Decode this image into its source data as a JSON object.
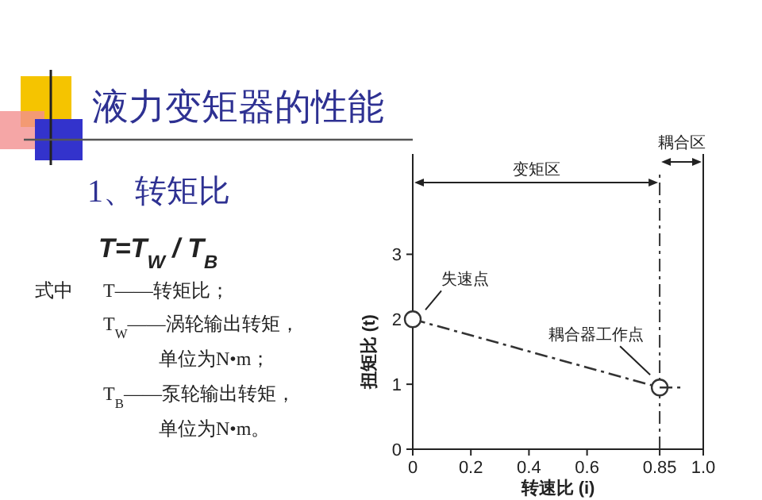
{
  "chart_data": {
    "type": "line",
    "title": "液力变矩器的性能",
    "subtitle": "1、转矩比",
    "xlabel": "转速比 (i)",
    "ylabel": "扭矩比 (t)",
    "annotations": [
      "T=T$_{W}$ / T$_{B}$",
      "式中",
      "T——转矩比；",
      "T$_{W}$——涡轮输出转矩，",
      "单位为N•m；",
      "T$_{B}$——泵轮输出转矩，",
      "单位为N•m。",
      "变矩区",
      "耦合区",
      {
        "text": "失速点",
        "x": 0,
        "y": 2
      },
      {
        "text": "耦合器工作点",
        "x": 0.85,
        "y": 0.95
      }
    ],
    "series": [
      {
        "color": "#333333",
        "x": [
          0,
          0.85
        ],
        "values": [
          2,
          0.95
        ],
        "marker": "circle",
        "line_style": "dashed"
      },
      {
        "color": "#333333",
        "x": [
          0.85,
          0.93
        ],
        "values": [
          0.95,
          0.95
        ],
        "marker": "none",
        "line_style": "dashed"
      }
    ],
    "xlim": [
      0,
      1
    ],
    "xticks": [
      0,
      0.2,
      0.4,
      0.6,
      0.85,
      {
        "value": 1,
        "label": "1.0"
      }
    ],
    "ylim": [
      0,
      4.3
    ],
    "yticks": [
      0,
      1,
      2,
      3
    ],
    "ref_lines": [
      {
        "axis": "x",
        "value": 0.85,
        "line_style": "dashed",
        "color": "#333333"
      }
    ],
    "grid": false
  }
}
